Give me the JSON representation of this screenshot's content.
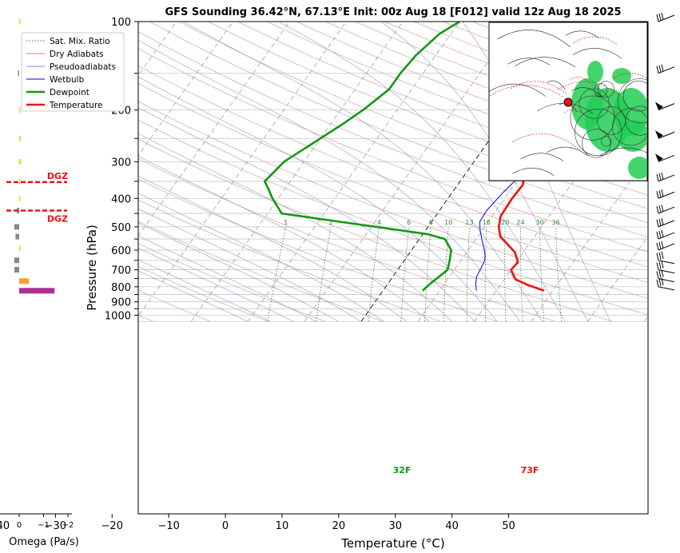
{
  "title": "GFS Sounding 36.42°N, 67.13°E Init: 00z Aug 18 [F012] valid 12z Aug 18 2025",
  "xlabel": "Temperature (°C)",
  "ylabel": "Pressure (hPa)",
  "omega_label": "Omega (Pa/s)",
  "legend": [
    {
      "label": "Sat. Mix. Ratio",
      "color": "#2e8b2e",
      "style": "dotted"
    },
    {
      "label": "Dry Adiabats",
      "color": "#d08080",
      "style": "solid"
    },
    {
      "label": "Pseudoadiabats",
      "color": "#8888cc",
      "style": "solid"
    },
    {
      "label": "Wetbulb",
      "color": "#0000ee",
      "style": "solid"
    },
    {
      "label": "Dewpoint",
      "color": "#119911",
      "style": "thick"
    },
    {
      "label": "Temperature",
      "color": "#ee1111",
      "style": "thick"
    }
  ],
  "dgz_label": "DGZ",
  "surface_temp_label": "73F",
  "surface_dew_label": "32F",
  "mixing_ratio_labels": [
    "1",
    "2",
    "4",
    "6",
    "8",
    "10",
    "13",
    "16",
    "20",
    "24",
    "30",
    "36"
  ],
  "chart_data": {
    "type": "line",
    "title": "GFS Sounding 36.42°N, 67.13°E Init: 00z Aug 18 [F012] valid 12z Aug 18 2025",
    "xlabel": "Temperature (°C)",
    "ylabel": "Pressure (hPa)",
    "xlim": [
      -40,
      50
    ],
    "ylim": [
      1050,
      100
    ],
    "y_scale": "log",
    "x_ticks": [
      -40,
      -30,
      -20,
      -10,
      0,
      10,
      20,
      30,
      40,
      50
    ],
    "y_ticks": [
      100,
      200,
      300,
      400,
      500,
      600,
      700,
      800,
      900,
      1000
    ],
    "grid": true,
    "series": [
      {
        "name": "Temperature",
        "color": "#ee1111",
        "points": [
          [
            28.5,
            825
          ],
          [
            25,
            790
          ],
          [
            22,
            755
          ],
          [
            20,
            700
          ],
          [
            20.3,
            660
          ],
          [
            18.5,
            610
          ],
          [
            16,
            570
          ],
          [
            14,
            540
          ],
          [
            12.5,
            500
          ],
          [
            11.5,
            460
          ],
          [
            11.3,
            400
          ],
          [
            11.5,
            360
          ],
          [
            10.5,
            330
          ],
          [
            9.5,
            300
          ],
          [
            6,
            270
          ],
          [
            3,
            245
          ],
          [
            0,
            220
          ],
          [
            -1.5,
            200
          ],
          [
            -4,
            170
          ],
          [
            -7,
            140
          ],
          [
            -8,
            130
          ],
          [
            -8.5,
            120
          ],
          [
            -9,
            110
          ],
          [
            -9.5,
            100
          ]
        ]
      },
      {
        "name": "Dewpoint",
        "color": "#119911",
        "points": [
          [
            7,
            825
          ],
          [
            7.5,
            780
          ],
          [
            8.8,
            700
          ],
          [
            8,
            650
          ],
          [
            7,
            600
          ],
          [
            4.5,
            550
          ],
          [
            1,
            530
          ],
          [
            -20,
            470
          ],
          [
            -27.5,
            450
          ],
          [
            -31,
            400
          ],
          [
            -33,
            370
          ],
          [
            -34.5,
            350
          ],
          [
            -33.5,
            300
          ],
          [
            -30,
            250
          ],
          [
            -28,
            225
          ],
          [
            -26,
            200
          ],
          [
            -24,
            170
          ],
          [
            -24,
            150
          ],
          [
            -23.5,
            130
          ],
          [
            -22,
            110
          ],
          [
            -20,
            100
          ]
        ]
      },
      {
        "name": "Wetbulb",
        "color": "#0000ee",
        "points": [
          [
            16.5,
            825
          ],
          [
            15.5,
            780
          ],
          [
            14.8,
            740
          ],
          [
            14.5,
            690
          ],
          [
            14.2,
            650
          ],
          [
            13.5,
            620
          ],
          [
            12.5,
            590
          ],
          [
            11,
            550
          ],
          [
            9.5,
            510
          ],
          [
            8.5,
            480
          ],
          [
            8.3,
            440
          ],
          [
            9,
            380
          ],
          [
            9.8,
            340
          ],
          [
            9.5,
            300
          ],
          [
            6,
            265
          ],
          [
            2,
            230
          ],
          [
            -1.5,
            200
          ],
          [
            -4,
            170
          ],
          [
            -7,
            140
          ],
          [
            -8.5,
            120
          ],
          [
            -9.5,
            100
          ]
        ]
      }
    ],
    "omega_bars": [
      {
        "pressure": 825,
        "value": -1.45,
        "color": "#b03090"
      },
      {
        "pressure": 765,
        "value": -0.4,
        "color": "#f5a030"
      },
      {
        "pressure": 700,
        "value": 0.2,
        "color": "#888888"
      },
      {
        "pressure": 650,
        "value": 0.2,
        "color": "#888888"
      },
      {
        "pressure": 592,
        "value": -0.02,
        "color": "#f5d020"
      },
      {
        "pressure": 540,
        "value": 0.15,
        "color": "#888888"
      },
      {
        "pressure": 500,
        "value": 0.2,
        "color": "#888888"
      },
      {
        "pressure": 440,
        "value": 0.1,
        "color": "#888888"
      },
      {
        "pressure": 400,
        "value": -0.03,
        "color": "#f5d020"
      },
      {
        "pressure": 350,
        "value": -0.03,
        "color": "#f5d020"
      },
      {
        "pressure": 300,
        "value": -0.08,
        "color": "#f5d020"
      },
      {
        "pressure": 250,
        "value": -0.06,
        "color": "#f5d020"
      },
      {
        "pressure": 200,
        "value": -0.03,
        "color": "#f5d020"
      },
      {
        "pressure": 150,
        "value": 0.05,
        "color": "#888888"
      },
      {
        "pressure": 100,
        "value": -0.01,
        "color": "#f5d020"
      }
    ],
    "omega_xlim": [
      0.3,
      -2.1
    ],
    "omega_ticks": [
      0,
      -1,
      -2
    ],
    "dgz_pressures": [
      440,
      352
    ],
    "wind_barb_pressures": [
      100,
      150,
      200,
      250,
      300,
      350,
      400,
      450,
      500,
      550,
      600,
      650,
      700,
      750,
      800
    ]
  }
}
